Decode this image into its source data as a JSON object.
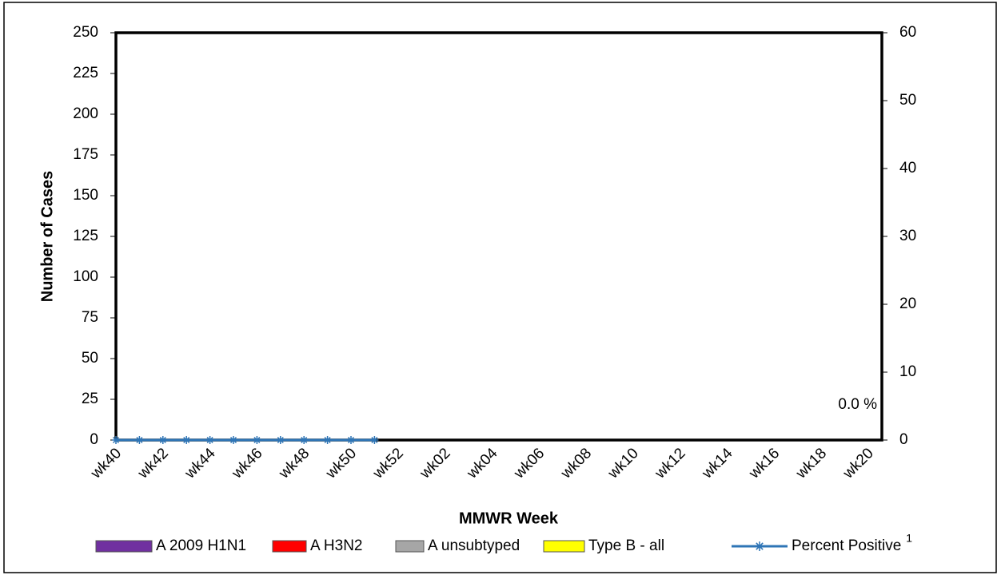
{
  "chart_data": {
    "type": "bar-line",
    "ylabel": "Number of Cases",
    "xlabel": "MMWR Week",
    "categories": [
      "wk40",
      null,
      "wk42",
      null,
      "wk44",
      null,
      "wk46",
      null,
      "wk48",
      null,
      "wk50",
      null,
      "wk52",
      null,
      "wk02",
      null,
      "wk04",
      null,
      "wk06",
      null,
      "wk08",
      null,
      "wk10",
      null,
      "wk12",
      null,
      "wk14",
      null,
      "wk16",
      null,
      "wk18",
      null,
      "wk20"
    ],
    "series": [
      {
        "name": "A 2009 H1N1",
        "color": "#7030a0",
        "type": "bar",
        "values": [
          0,
          0,
          0,
          0,
          0,
          0,
          0,
          0,
          0,
          0,
          0,
          0,
          null,
          null,
          null,
          null,
          null,
          null,
          null,
          null,
          null,
          null,
          null,
          null,
          null,
          null,
          null,
          null,
          null,
          null,
          null,
          null,
          null
        ]
      },
      {
        "name": "A H3N2",
        "color": "#ff0000",
        "type": "bar",
        "values": [
          0,
          0,
          0,
          0,
          0,
          0,
          0,
          0,
          0,
          0,
          0,
          0,
          null,
          null,
          null,
          null,
          null,
          null,
          null,
          null,
          null,
          null,
          null,
          null,
          null,
          null,
          null,
          null,
          null,
          null,
          null,
          null,
          null
        ]
      },
      {
        "name": "A unsubtyped",
        "color": "#a6a6a6",
        "type": "bar",
        "values": [
          0,
          0,
          0,
          0,
          0,
          0,
          0,
          0,
          0,
          0,
          0,
          0,
          null,
          null,
          null,
          null,
          null,
          null,
          null,
          null,
          null,
          null,
          null,
          null,
          null,
          null,
          null,
          null,
          null,
          null,
          null,
          null,
          null
        ]
      },
      {
        "name": "Type B - all",
        "color": "#ffff00",
        "type": "bar",
        "values": [
          0,
          0,
          0,
          0,
          0,
          0,
          0,
          0,
          0,
          0,
          0,
          0,
          null,
          null,
          null,
          null,
          null,
          null,
          null,
          null,
          null,
          null,
          null,
          null,
          null,
          null,
          null,
          null,
          null,
          null,
          null,
          null,
          null
        ]
      },
      {
        "name": "Percent Positive",
        "color": "#2e75b6",
        "type": "line",
        "axis": "y2",
        "values": [
          0,
          0,
          0,
          0,
          0,
          0,
          0,
          0,
          0,
          0,
          0,
          0,
          null,
          null,
          null,
          null,
          null,
          null,
          null,
          null,
          null,
          null,
          null,
          null,
          null,
          null,
          null,
          null,
          null,
          null,
          null,
          null,
          null
        ]
      }
    ],
    "legend_superscript": "1",
    "annotation": "0.0 %",
    "ylim": [
      0,
      250
    ],
    "yticks": [
      0,
      25,
      50,
      75,
      100,
      125,
      150,
      175,
      200,
      225,
      250
    ],
    "y2lim": [
      0,
      60
    ],
    "y2ticks": [
      0,
      10,
      20,
      30,
      40,
      50,
      60
    ]
  }
}
